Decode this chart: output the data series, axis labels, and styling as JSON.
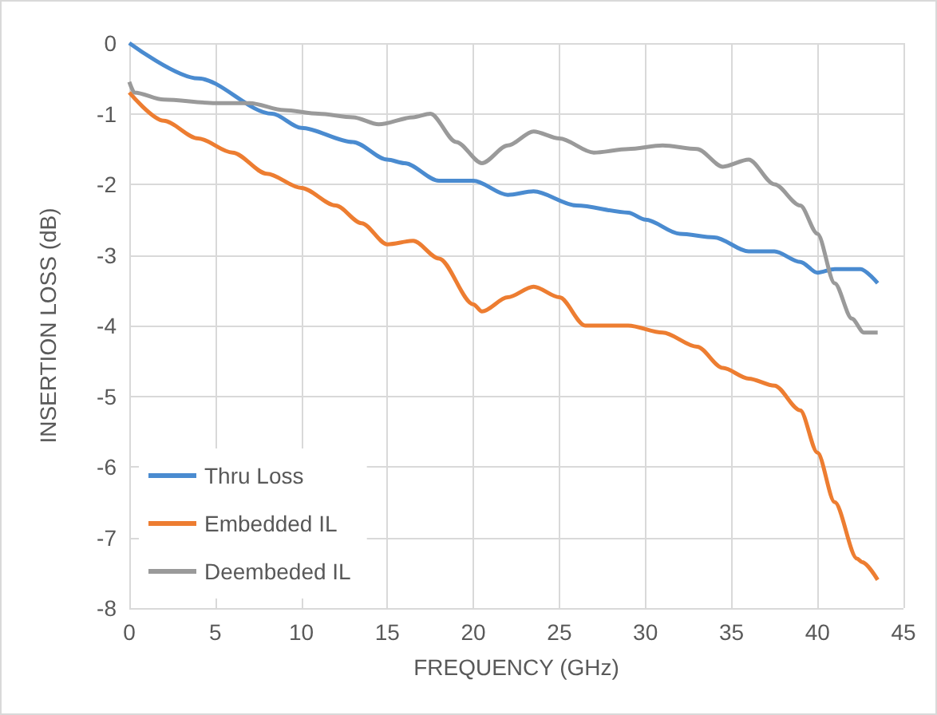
{
  "chart_data": {
    "type": "line",
    "xlabel": "FREQUENCY (GHz)",
    "ylabel": "INSERTION LOSS (dB)",
    "xlim": [
      0,
      45
    ],
    "xticks": [
      0,
      5,
      10,
      15,
      20,
      25,
      30,
      35,
      40,
      45
    ],
    "ylim": [
      -8,
      0
    ],
    "yticks": [
      -8,
      -7,
      -6,
      -5,
      -4,
      -3,
      -2,
      -1,
      0
    ],
    "grid": true,
    "legend": "bottom left",
    "marker": "none",
    "line_style": "solid",
    "series": [
      {
        "name": "Thru Loss",
        "color": "#4a8bd0",
        "x": [
          0,
          4,
          8.3,
          10,
          13,
          15,
          16,
          18,
          20,
          22,
          23.5,
          26,
          29,
          30,
          32,
          34,
          36,
          37.5,
          39,
          40,
          41,
          42.5,
          43.5
        ],
        "values": [
          0,
          -0.5,
          -1,
          -1.2,
          -1.4,
          -1.65,
          -1.7,
          -1.95,
          -1.95,
          -2.15,
          -2.1,
          -2.3,
          -2.4,
          -2.5,
          -2.7,
          -2.75,
          -2.95,
          -2.95,
          -3.1,
          -3.25,
          -3.2,
          -3.2,
          -3.4
        ]
      },
      {
        "name": "Embedded IL",
        "color": "#ed7d31",
        "x": [
          0,
          2,
          4,
          6,
          8,
          10,
          12,
          13.5,
          15,
          16.5,
          18,
          20,
          20.5,
          22,
          23.5,
          25,
          26.5,
          29,
          31,
          33,
          34.5,
          36,
          37.5,
          39,
          40,
          41,
          42.3,
          42.6,
          43.5
        ],
        "values": [
          -0.7,
          -1.1,
          -1.35,
          -1.55,
          -1.85,
          -2.05,
          -2.3,
          -2.55,
          -2.85,
          -2.8,
          -3.05,
          -3.7,
          -3.8,
          -3.6,
          -3.45,
          -3.6,
          -4,
          -4,
          -4.1,
          -4.3,
          -4.6,
          -4.75,
          -4.85,
          -5.2,
          -5.8,
          -6.5,
          -7.3,
          -7.35,
          -7.6
        ]
      },
      {
        "name": "Deembeded IL",
        "color": "#9a9a9a",
        "x": [
          0,
          0.3,
          2,
          5,
          7,
          9,
          11,
          13,
          14.5,
          16.5,
          17.5,
          19,
          20.5,
          22,
          23.5,
          25,
          27,
          29,
          31,
          33,
          34.5,
          36,
          37.5,
          39,
          40,
          41,
          42,
          42.7,
          43.5
        ],
        "values": [
          -0.55,
          -0.7,
          -0.8,
          -0.85,
          -0.85,
          -0.95,
          -1,
          -1.05,
          -1.15,
          -1.05,
          -1,
          -1.4,
          -1.7,
          -1.45,
          -1.25,
          -1.35,
          -1.55,
          -1.5,
          -1.45,
          -1.5,
          -1.75,
          -1.65,
          -2,
          -2.3,
          -2.7,
          -3.4,
          -3.9,
          -4.1,
          -4.1
        ]
      }
    ]
  }
}
